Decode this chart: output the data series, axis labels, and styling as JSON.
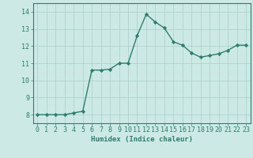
{
  "x": [
    0,
    1,
    2,
    3,
    4,
    5,
    6,
    7,
    8,
    9,
    10,
    11,
    12,
    13,
    14,
    15,
    16,
    17,
    18,
    19,
    20,
    21,
    22,
    23
  ],
  "y": [
    8.0,
    8.0,
    8.0,
    8.0,
    8.1,
    8.2,
    10.6,
    10.6,
    10.65,
    11.0,
    11.0,
    12.6,
    13.85,
    13.4,
    13.05,
    12.25,
    12.05,
    11.6,
    11.35,
    11.45,
    11.55,
    11.75,
    12.05,
    12.05
  ],
  "line_color": "#2e7d6e",
  "marker": "D",
  "marker_size": 2.2,
  "bg_color": "#cce9e5",
  "grid_color": "#aacfcb",
  "xlabel": "Humidex (Indice chaleur)",
  "ylim": [
    7.5,
    14.5
  ],
  "xlim": [
    -0.5,
    23.5
  ],
  "yticks": [
    8,
    9,
    10,
    11,
    12,
    13,
    14
  ],
  "xticks": [
    0,
    1,
    2,
    3,
    4,
    5,
    6,
    7,
    8,
    9,
    10,
    11,
    12,
    13,
    14,
    15,
    16,
    17,
    18,
    19,
    20,
    21,
    22,
    23
  ],
  "xlabel_fontsize": 6.5,
  "tick_fontsize": 6.0,
  "tick_color": "#2e7d6e",
  "axis_color": "#2e7d6e",
  "linewidth": 1.0
}
